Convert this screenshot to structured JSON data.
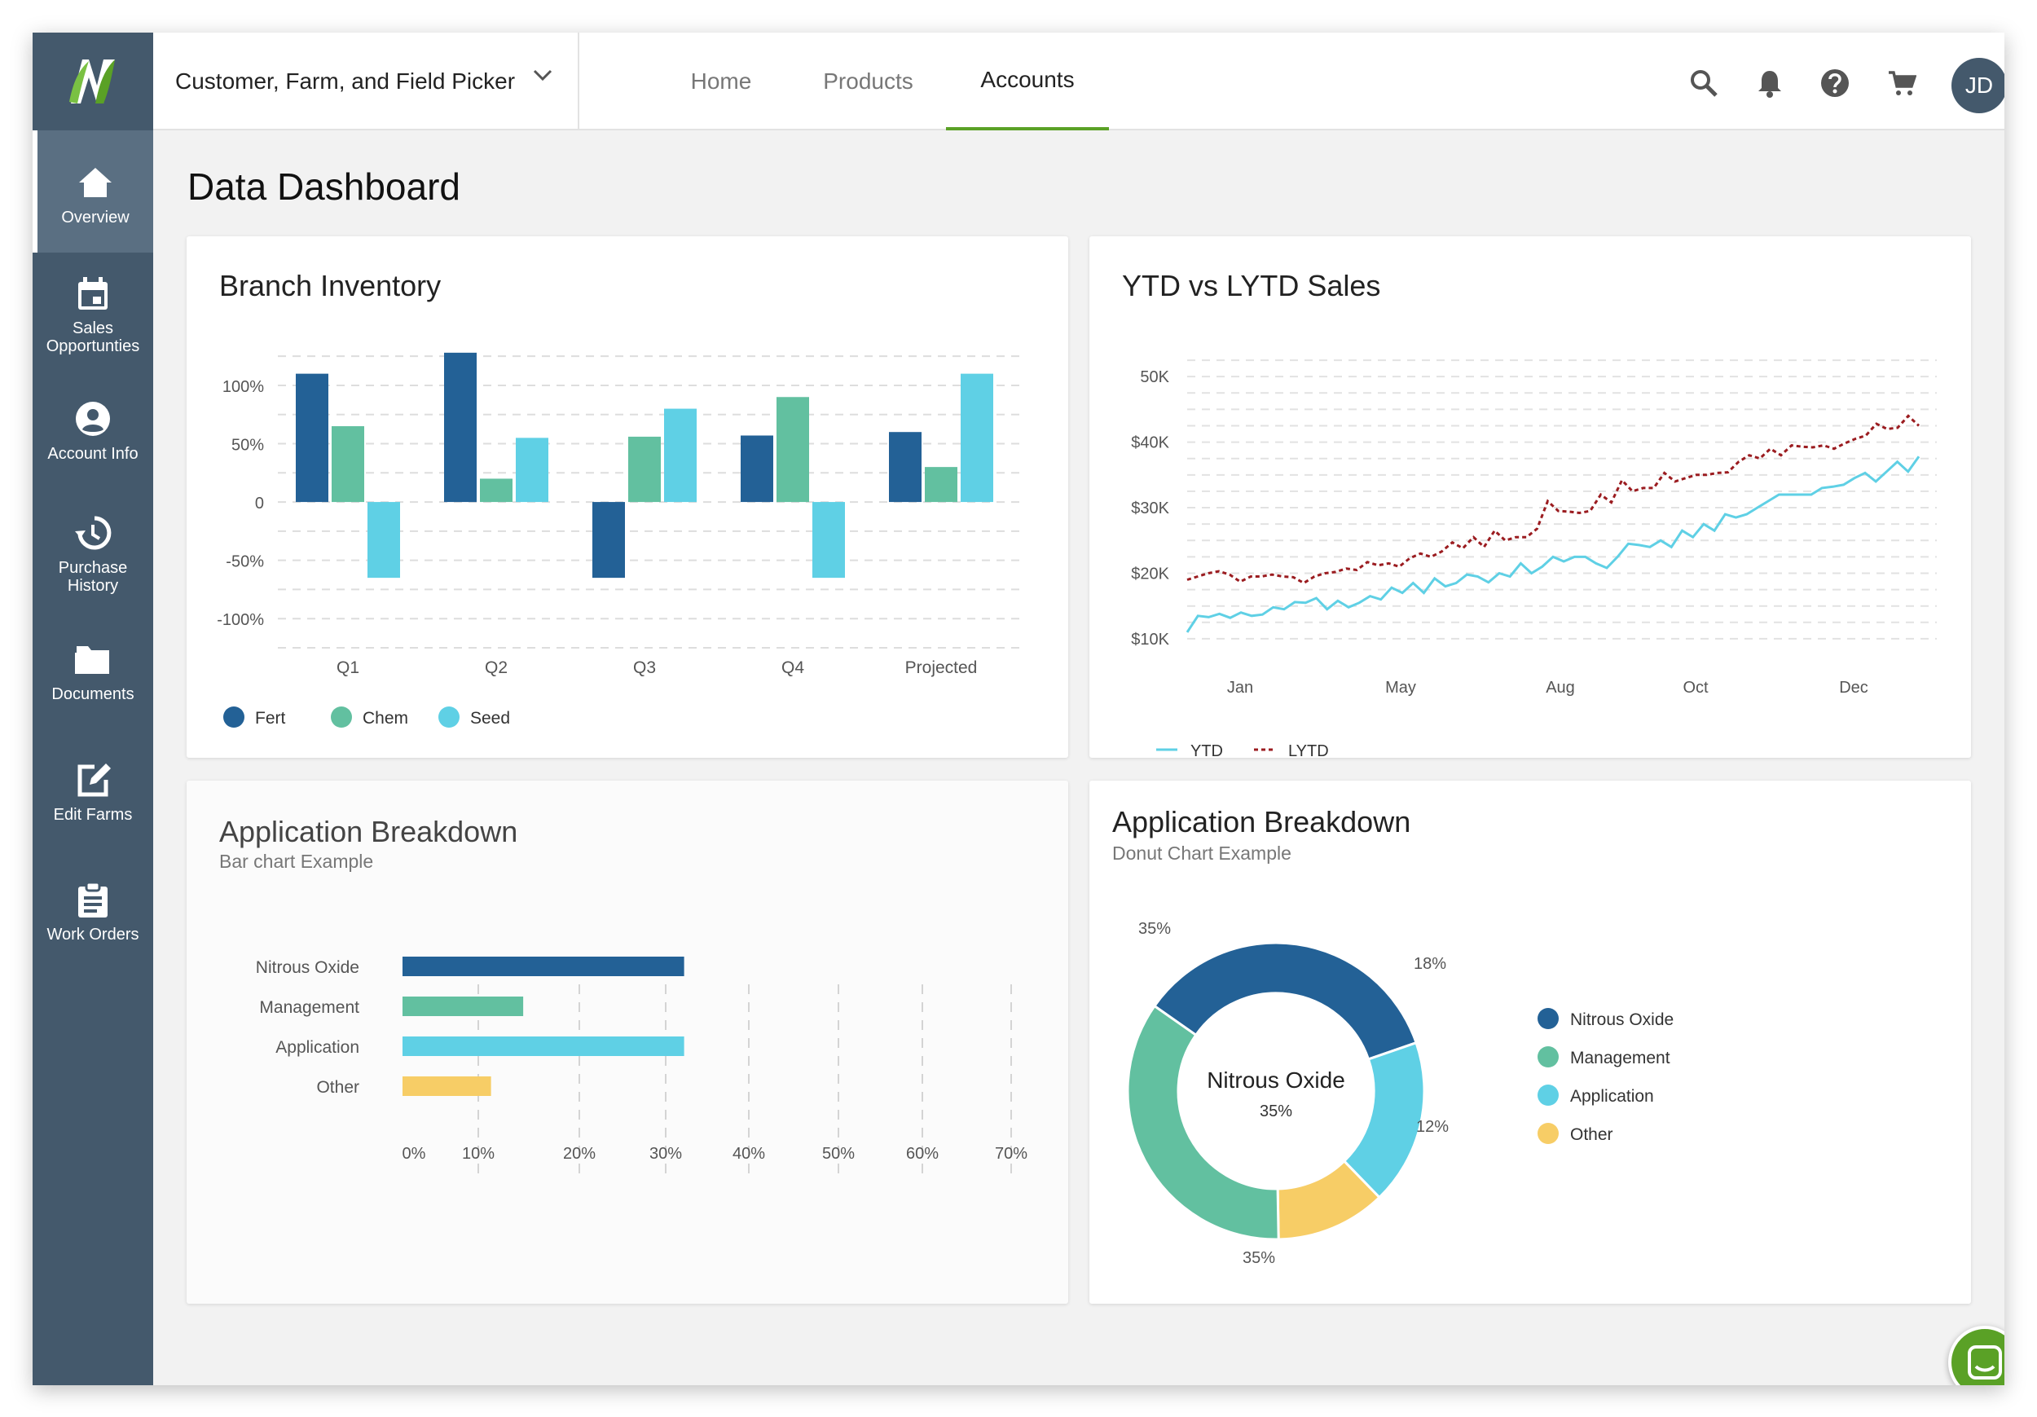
{
  "colors": {
    "accent": "#5aa126",
    "sidebar": "#44596c",
    "fert": "#236196",
    "chem": "#62c0a0",
    "seed": "#5fd0e5",
    "other": "#f7cd66",
    "lytd": "#9b1c20"
  },
  "topbar": {
    "picker_label": "Customer, Farm, and Field Picker",
    "tabs": [
      {
        "label": "Home"
      },
      {
        "label": "Products"
      },
      {
        "label": "Accounts"
      }
    ],
    "active_tab": "Accounts",
    "icons": [
      "search-icon",
      "bell-icon",
      "help-icon",
      "cart-icon"
    ],
    "avatar_initials": "JD"
  },
  "sidebar": {
    "items": [
      {
        "label": "Overview",
        "icon": "home-icon"
      },
      {
        "label": "Sales Opportunties",
        "icon": "calendar-icon"
      },
      {
        "label": "Account Info",
        "icon": "account-icon"
      },
      {
        "label": "Purchase History",
        "icon": "history-icon"
      },
      {
        "label": "Documents",
        "icon": "folder-icon"
      },
      {
        "label": "Edit Farms",
        "icon": "edit-icon"
      },
      {
        "label": "Work Orders",
        "icon": "clipboard-icon"
      }
    ],
    "active_item": "Overview"
  },
  "page": {
    "title": "Data Dashboard"
  },
  "cards": {
    "inventory": {
      "title": "Branch Inventory"
    },
    "sales": {
      "title": "YTD vs LYTD Sales"
    },
    "bar_breakdown": {
      "title": "Application Breakdown",
      "subtitle": "Bar chart Example"
    },
    "donut_breakdown": {
      "title": "Application Breakdown",
      "subtitle": "Donut Chart Example"
    }
  },
  "chart_data": [
    {
      "type": "bar",
      "title": "Branch Inventory",
      "categories": [
        "Q1",
        "Q2",
        "Q3",
        "Q4",
        "Projected"
      ],
      "series": [
        {
          "name": "Fert",
          "values": [
            110,
            128,
            -65,
            57,
            60
          ]
        },
        {
          "name": "Chem",
          "values": [
            65,
            20,
            56,
            90,
            30
          ]
        },
        {
          "name": "Seed",
          "values": [
            -65,
            55,
            80,
            -65,
            110
          ]
        }
      ],
      "ytick_labels": [
        "100%",
        "50%",
        "0",
        "-50%",
        "-100%"
      ],
      "ylim": [
        -125,
        130
      ],
      "legend": "bottom-left",
      "grid": true
    },
    {
      "type": "line",
      "title": "YTD vs LYTD Sales",
      "x_ticks": [
        "Jan",
        "May",
        "Aug",
        "Oct",
        "Dec"
      ],
      "ytick_labels": [
        "50K",
        "$40K",
        "$30K",
        "$20K",
        "$10K"
      ],
      "ylim": [
        8000,
        54000
      ],
      "series": [
        {
          "name": "YTD",
          "values": [
            11000,
            13500,
            13300,
            13800,
            13200,
            14000,
            13500,
            13700,
            14800,
            14500,
            15600,
            15500,
            16200,
            14500,
            15800,
            14800,
            15500,
            16500,
            16000,
            17800,
            17000,
            18500,
            17000,
            19200,
            18000,
            18500,
            19800,
            19500,
            18600,
            20000,
            19500,
            21500,
            20000,
            21000,
            22500,
            21800,
            22500,
            22500,
            21500,
            20800,
            22500,
            24500,
            24300,
            24000,
            25000,
            24000,
            26500,
            25500,
            27500,
            26500,
            29000,
            28500,
            29000,
            30000,
            31000,
            32000,
            32000,
            32000,
            32000,
            33000,
            33200,
            33500,
            34500,
            35300,
            34000,
            35500,
            37000,
            35500,
            37800
          ]
        },
        {
          "name": "LYTD",
          "values": [
            19000,
            19500,
            20000,
            20300,
            19800,
            18700,
            19500,
            19500,
            19800,
            19500,
            19400,
            18500,
            19500,
            20000,
            20200,
            20700,
            20500,
            21700,
            21200,
            21500,
            21000,
            22300,
            23000,
            22500,
            23300,
            24700,
            23800,
            25500,
            24000,
            26500,
            25000,
            25500,
            25500,
            26800,
            31000,
            29500,
            29400,
            29200,
            29500,
            32000,
            30800,
            34200,
            32500,
            33000,
            33000,
            35300,
            34000,
            34500,
            35000,
            35000,
            35300,
            35400,
            37000,
            38000,
            37500,
            39000,
            38000,
            39500,
            39300,
            39200,
            39500,
            39000,
            39800,
            40500,
            41000,
            42800,
            42000,
            42200,
            44000,
            42500
          ]
        }
      ],
      "legend": "bottom-left",
      "grid": true
    },
    {
      "type": "bar",
      "title": "Application Breakdown",
      "categories": [
        "Nitrous Oxide",
        "Management",
        "Application",
        "Other"
      ],
      "values": [
        35,
        15,
        35,
        11
      ],
      "xtick_labels": [
        "0%",
        "10%",
        "20%",
        "30%",
        "40%",
        "50%",
        "60%",
        "70%"
      ],
      "xlim": [
        0,
        70
      ],
      "orientation": "horizontal",
      "grid": true
    },
    {
      "type": "pie",
      "title": "Application Breakdown",
      "labels": [
        "Nitrous Oxide",
        "Application",
        "Other",
        "Management"
      ],
      "values": [
        35,
        18,
        12,
        35
      ],
      "slice_labels": [
        "35%",
        "18%",
        "12%",
        "35%"
      ],
      "center_label": "Nitrous Oxide",
      "center_value": "35%",
      "legend": "right"
    }
  ]
}
